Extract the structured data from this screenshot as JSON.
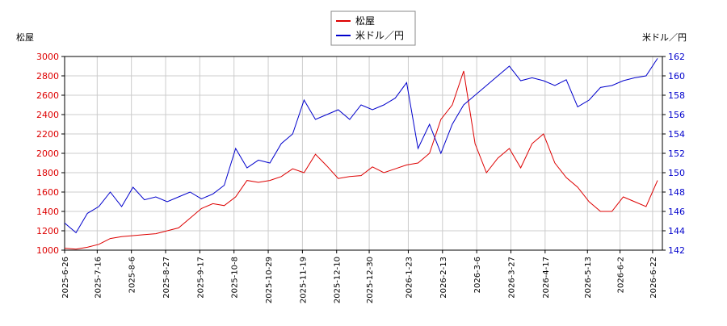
{
  "chart_data": {
    "type": "line",
    "y_label": "松屋",
    "y2_label": "米ドル／円",
    "x": [
      "2025-6-26",
      "2025-7-3",
      "2025-7-10",
      "2025-7-17",
      "2025-7-24",
      "2025-7-31",
      "2025-8-7",
      "2025-8-14",
      "2025-8-21",
      "2025-8-28",
      "2025-9-4",
      "2025-9-11",
      "2025-9-18",
      "2025-9-25",
      "2025-10-2",
      "2025-10-9",
      "2025-10-16",
      "2025-10-23",
      "2025-10-30",
      "2025-11-6",
      "2025-11-13",
      "2025-11-20",
      "2025-11-27",
      "2025-12-4",
      "2025-12-11",
      "2025-12-18",
      "2025-12-25",
      "2026-1-1",
      "2026-1-8",
      "2026-1-15",
      "2026-1-22",
      "2026-1-29",
      "2026-2-5",
      "2026-2-12",
      "2026-2-19",
      "2026-2-26",
      "2026-3-5",
      "2026-3-12",
      "2026-3-19",
      "2026-3-26",
      "2026-4-2",
      "2026-4-9",
      "2026-4-16",
      "2026-4-23",
      "2026-4-30",
      "2026-5-7",
      "2026-5-14",
      "2026-5-21",
      "2026-5-28",
      "2026-6-4",
      "2026-6-11",
      "2026-6-18",
      "2026-6-25"
    ],
    "series": [
      {
        "name": "松屋",
        "color": "#dd0000",
        "values": [
          1020,
          1010,
          1030,
          1060,
          1120,
          1140,
          1150,
          1160,
          1170,
          1200,
          1230,
          1330,
          1430,
          1480,
          1460,
          1550,
          1720,
          1700,
          1720,
          1760,
          1840,
          1800,
          1990,
          1870,
          1740,
          1760,
          1770,
          1860,
          1800,
          1840,
          1880,
          1900,
          2000,
          2350,
          2500,
          2850,
          2100,
          1800,
          1950,
          2050,
          1850,
          2100,
          2200,
          1900,
          1750,
          1650,
          1500,
          1400,
          1400,
          1550,
          1500,
          1450,
          1720
        ]
      },
      {
        "name": "米ドル／円",
        "color": "#0000cc",
        "axis": "y2",
        "values": [
          144.8,
          143.8,
          145.8,
          146.5,
          148.0,
          146.5,
          148.5,
          147.2,
          147.5,
          147.0,
          147.5,
          148.0,
          147.3,
          147.8,
          148.7,
          152.5,
          150.5,
          151.3,
          151.0,
          153.0,
          154.0,
          157.5,
          155.5,
          156.0,
          156.5,
          155.5,
          157.0,
          156.5,
          157.0,
          157.7,
          159.3,
          152.5,
          155.0,
          152.0,
          155.0,
          157.0,
          158.0,
          159.0,
          160.0,
          161.0,
          159.5,
          159.8,
          159.5,
          159.0,
          159.6,
          156.8,
          157.5,
          158.8,
          159.0,
          159.5,
          159.8,
          160.0,
          161.8
        ]
      }
    ],
    "xlim": [
      "2025-6-26",
      "2026-6-28"
    ],
    "xticks": [
      "2025-6-26",
      "2025-7-16",
      "2025-8-6",
      "2025-8-27",
      "2025-9-17",
      "2025-10-8",
      "2025-10-29",
      "2025-11-19",
      "2025-12-10",
      "2025-12-30",
      "2026-1-23",
      "2026-2-13",
      "2026-3-6",
      "2026-3-27",
      "2026-4-17",
      "2026-5-13",
      "2026-6-2",
      "2026-6-22"
    ],
    "ylim": [
      1000,
      3000
    ],
    "yticks": [
      1000,
      1200,
      1400,
      1600,
      1800,
      2000,
      2200,
      2400,
      2600,
      2800,
      3000
    ],
    "y2lim": [
      142,
      162
    ],
    "y2ticks": [
      142,
      144,
      146,
      148,
      150,
      152,
      154,
      156,
      158,
      160,
      162
    ],
    "grid": true,
    "legend": "top"
  }
}
